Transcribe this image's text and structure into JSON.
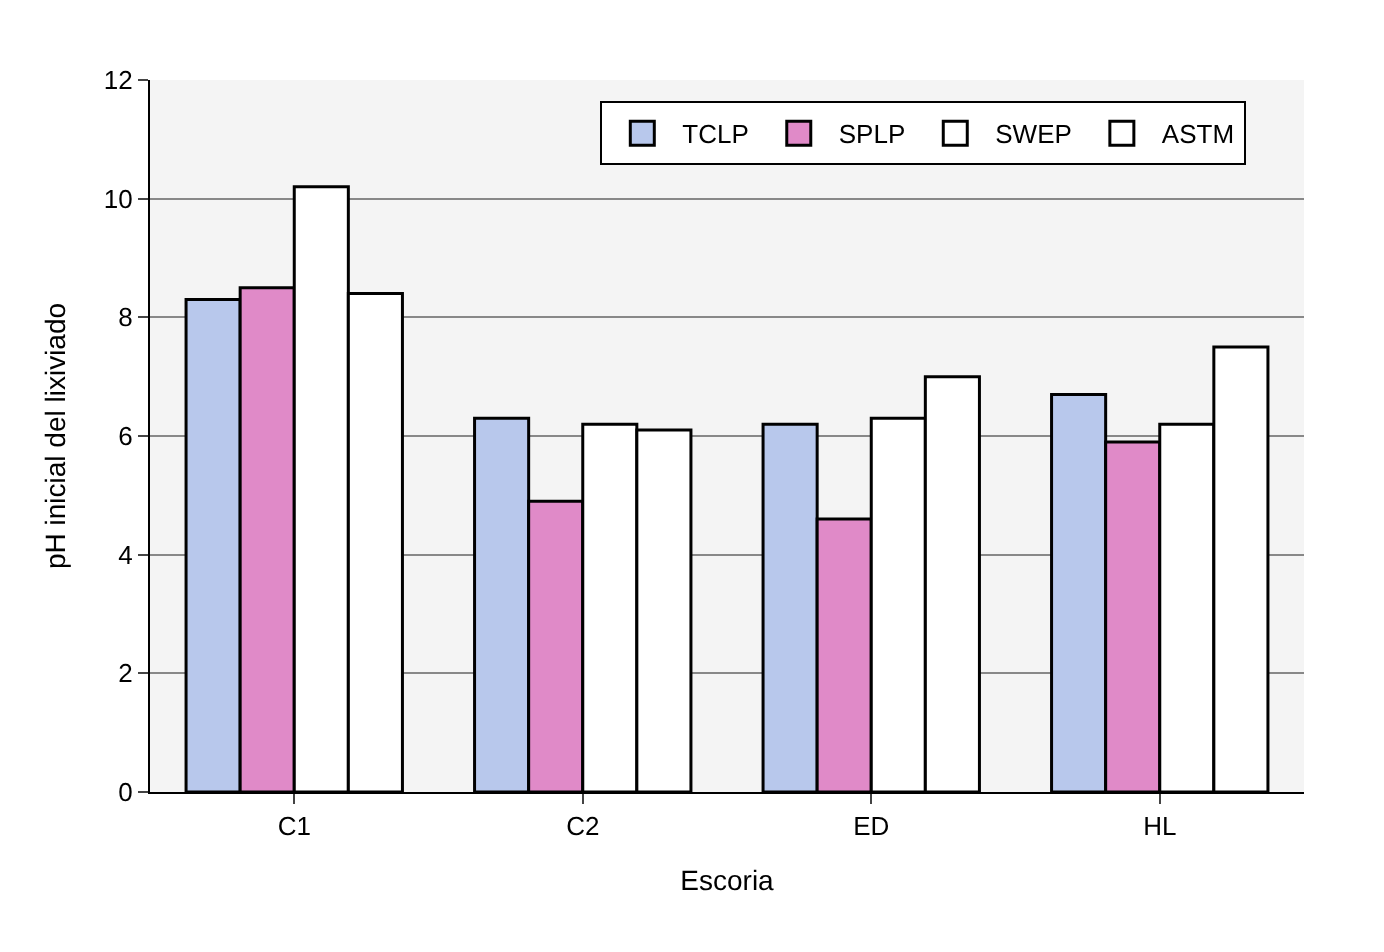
{
  "chart_data": {
    "type": "bar",
    "xlabel": "Escoria",
    "ylabel": "pH inicial del lixiviado",
    "categories": [
      "C1",
      "C2",
      "ED",
      "HL"
    ],
    "series": [
      {
        "name": "TCLP",
        "color": "#b8c8ec",
        "values": [
          8.3,
          6.3,
          6.2,
          6.7
        ]
      },
      {
        "name": "SPLP",
        "color": "#e08ac8",
        "values": [
          8.5,
          4.9,
          4.6,
          5.9
        ]
      },
      {
        "name": "SWEP",
        "color": "#ffffff",
        "values": [
          10.2,
          6.2,
          6.3,
          6.2
        ]
      },
      {
        "name": "ASTM",
        "color": "#ffffff",
        "values": [
          8.4,
          6.1,
          7.0,
          7.5
        ]
      }
    ],
    "ylim": [
      0,
      12
    ],
    "yticks": [
      0,
      2,
      4,
      6,
      8,
      10,
      12
    ],
    "grid": "y",
    "legend": "top right"
  }
}
